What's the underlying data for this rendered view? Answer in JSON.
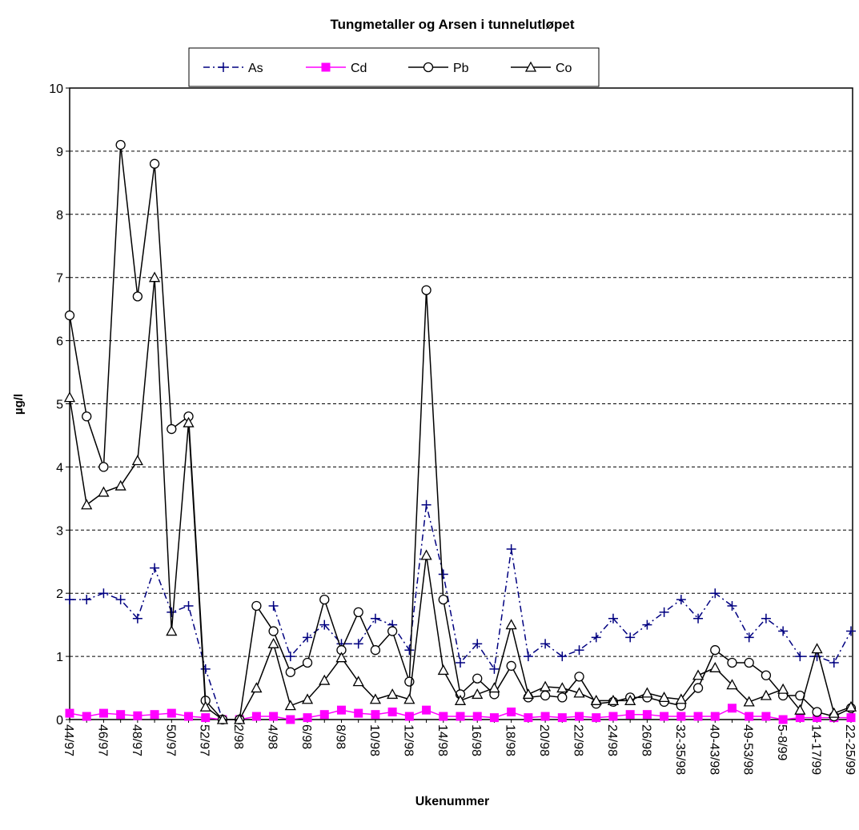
{
  "chart_data": {
    "type": "line",
    "title": "Tungmetaller og Arsen i tunnelutløpet",
    "x_label": "Ukenummer",
    "y_label": "µg/l",
    "categories": [
      "44/97",
      null,
      "46/97",
      null,
      "48/97",
      null,
      "50/97",
      null,
      "52/97",
      null,
      "2/98",
      null,
      "4/98",
      null,
      "6/98",
      null,
      "8/98",
      null,
      "10/98",
      null,
      "12/98",
      null,
      "14/98",
      null,
      "16/98",
      null,
      "18/98",
      null,
      "20/98",
      null,
      "22/98",
      null,
      "24/98",
      null,
      "26/98",
      null,
      "32-35/98",
      null,
      "40-43/98",
      null,
      "49-53/98",
      null,
      "5-8/99",
      null,
      "14-17/99",
      null,
      "22-25/99"
    ],
    "series": [
      {
        "name": "As",
        "color": "#000080",
        "marker": "plus",
        "line_style": "dashdot",
        "values": [
          1.9,
          1.9,
          2.0,
          1.9,
          1.6,
          2.4,
          1.7,
          1.8,
          0.8,
          0,
          0,
          null,
          1.8,
          1.0,
          1.3,
          1.5,
          1.2,
          1.2,
          1.6,
          1.5,
          1.1,
          3.4,
          2.3,
          0.9,
          1.2,
          0.8,
          2.7,
          1.0,
          1.2,
          1.0,
          1.1,
          1.3,
          1.6,
          1.3,
          1.5,
          1.7,
          1.9,
          1.6,
          2.0,
          1.8,
          1.3,
          1.6,
          1.4,
          1.0,
          1.0,
          0.9,
          1.4
        ]
      },
      {
        "name": "Cd",
        "color": "#ff00ff",
        "marker": "square",
        "line_style": "solid",
        "values": [
          0.1,
          0.05,
          0.1,
          0.08,
          0.06,
          0.08,
          0.1,
          0.05,
          0.03,
          0,
          0,
          0.05,
          0.05,
          0,
          0.03,
          0.08,
          0.15,
          0.1,
          0.08,
          0.12,
          0.05,
          0.15,
          0.05,
          0.05,
          0.05,
          0.03,
          0.12,
          0.03,
          0.05,
          0.03,
          0.05,
          0.03,
          0.05,
          0.08,
          0.08,
          0.05,
          0.05,
          0.05,
          0.05,
          0.18,
          0.05,
          0.05,
          0,
          0.03,
          0.03,
          0.03,
          0.03
        ]
      },
      {
        "name": "Pb",
        "color": "#000000",
        "marker": "circle",
        "line_style": "solid",
        "values": [
          6.4,
          4.8,
          4.0,
          9.1,
          6.7,
          8.8,
          4.6,
          4.8,
          0.3,
          0,
          0,
          1.8,
          1.4,
          0.75,
          0.9,
          1.9,
          1.1,
          1.7,
          1.1,
          1.4,
          0.6,
          6.8,
          1.9,
          0.4,
          0.65,
          0.4,
          0.85,
          0.35,
          0.38,
          0.35,
          0.68,
          0.25,
          0.28,
          0.35,
          0.35,
          0.28,
          0.22,
          0.5,
          1.1,
          0.9,
          0.9,
          0.7,
          0.38,
          0.38,
          0.12,
          0.05,
          0.18
        ]
      },
      {
        "name": "Co",
        "color": "#000000",
        "marker": "triangle",
        "line_style": "solid",
        "values": [
          5.1,
          3.4,
          3.6,
          3.7,
          4.1,
          7.0,
          1.4,
          4.7,
          0.2,
          0,
          0,
          0.5,
          1.2,
          0.22,
          0.32,
          0.62,
          0.98,
          0.6,
          0.32,
          0.4,
          0.32,
          2.6,
          0.78,
          0.3,
          0.4,
          0.5,
          1.5,
          0.4,
          0.52,
          0.5,
          0.42,
          0.3,
          0.3,
          0.3,
          0.42,
          0.35,
          0.32,
          0.7,
          0.82,
          0.55,
          0.28,
          0.38,
          0.48,
          0.15,
          1.12,
          0.1,
          0.2
        ]
      }
    ],
    "ylim": [
      0,
      10
    ],
    "yticks": [
      0,
      1,
      2,
      3,
      4,
      5,
      6,
      7,
      8,
      9,
      10
    ],
    "grid": true,
    "legend": "top"
  }
}
